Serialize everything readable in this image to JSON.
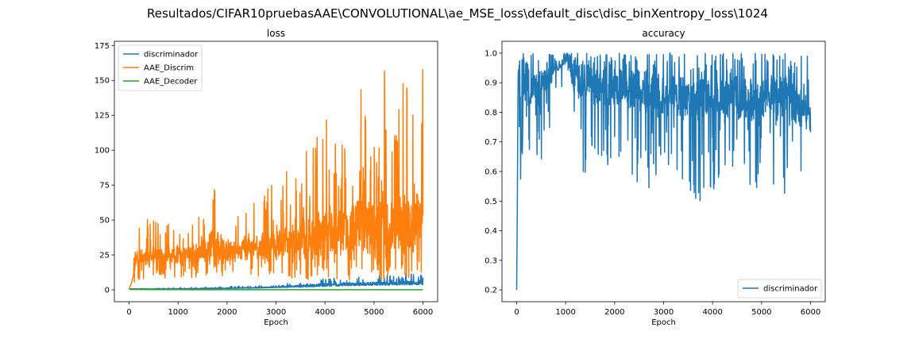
{
  "figure": {
    "suptitle": "Resultados/CIFAR10pruebasAAE\\CONVOLUTIONAL\\ae_MSE_loss\\default_disc\\disc_binXentropy_loss\\1024"
  },
  "chart_data": [
    {
      "type": "line",
      "title": "loss",
      "xlabel": "Epoch",
      "ylabel": "",
      "xlim": [
        -300,
        6300
      ],
      "ylim": [
        -8.5,
        178
      ],
      "xticks": [
        0,
        1000,
        2000,
        3000,
        4000,
        5000,
        6000
      ],
      "yticks": [
        0,
        25,
        50,
        75,
        100,
        125,
        150,
        175
      ],
      "legend_position": "upper-left",
      "series": [
        {
          "name": "discriminador",
          "color": "#1f77b4",
          "points": [
            [
              0,
              0.7
            ],
            [
              200,
              0.6
            ],
            [
              600,
              0.5
            ],
            [
              1000,
              0.5
            ],
            [
              1400,
              0.6
            ],
            [
              1800,
              0.8
            ],
            [
              2200,
              1.0
            ],
            [
              2600,
              1.2
            ],
            [
              3000,
              1.6
            ],
            [
              3500,
              2.0
            ],
            [
              4000,
              2.5
            ],
            [
              4500,
              3.0
            ],
            [
              5000,
              3.2
            ],
            [
              5500,
              3.5
            ],
            [
              6000,
              3.8
            ]
          ],
          "envelope_max": [
            [
              0,
              0.8
            ],
            [
              500,
              1.0
            ],
            [
              1000,
              1.5
            ],
            [
              1500,
              2.0
            ],
            [
              2000,
              2.5
            ],
            [
              3000,
              3.5
            ],
            [
              3500,
              6.0
            ],
            [
              4000,
              8.0
            ],
            [
              4500,
              9.0
            ],
            [
              5000,
              10.0
            ],
            [
              5500,
              11.0
            ],
            [
              6000,
              12.0
            ]
          ]
        },
        {
          "name": "AAE_Discrim",
          "color": "#ff7f0e",
          "points": [
            [
              0,
              0.5
            ],
            [
              50,
              5
            ],
            [
              100,
              12
            ],
            [
              150,
              20
            ],
            [
              500,
              22
            ],
            [
              1000,
              23
            ],
            [
              1500,
              24
            ],
            [
              2000,
              25
            ],
            [
              2500,
              26
            ],
            [
              3000,
              27
            ],
            [
              3500,
              28
            ],
            [
              4000,
              30
            ],
            [
              4500,
              31
            ],
            [
              5000,
              32
            ],
            [
              5500,
              33
            ],
            [
              6000,
              34
            ]
          ],
          "envelope_min": [
            [
              100,
              5
            ],
            [
              500,
              8
            ],
            [
              1000,
              8
            ],
            [
              1500,
              9
            ],
            [
              2000,
              10
            ],
            [
              3000,
              9
            ],
            [
              3500,
              7
            ],
            [
              4000,
              6
            ],
            [
              4500,
              7
            ],
            [
              5000,
              7
            ],
            [
              5500,
              8
            ],
            [
              6000,
              8
            ]
          ],
          "envelope_max": [
            [
              100,
              55
            ],
            [
              300,
              50
            ],
            [
              600,
              52
            ],
            [
              1000,
              48
            ],
            [
              1400,
              50
            ],
            [
              1700,
              86
            ],
            [
              2000,
              55
            ],
            [
              2500,
              65
            ],
            [
              3000,
              80
            ],
            [
              3500,
              95
            ],
            [
              3800,
              120
            ],
            [
              4000,
              125
            ],
            [
              4200,
              118
            ],
            [
              4500,
              130
            ],
            [
              4800,
              150
            ],
            [
              5000,
              120
            ],
            [
              5200,
              160
            ],
            [
              5400,
              125
            ],
            [
              5600,
              150
            ],
            [
              5800,
              140
            ],
            [
              6000,
              170
            ]
          ]
        },
        {
          "name": "AAE_Decoder",
          "color": "#2ca02c",
          "points": [
            [
              0,
              0.3
            ],
            [
              500,
              0.2
            ],
            [
              1000,
              0.15
            ],
            [
              2000,
              0.12
            ],
            [
              3000,
              0.1
            ],
            [
              4000,
              0.1
            ],
            [
              5000,
              0.1
            ],
            [
              6000,
              0.1
            ]
          ]
        }
      ]
    },
    {
      "type": "line",
      "title": "accuracy",
      "xlabel": "Epoch",
      "ylabel": "",
      "xlim": [
        -300,
        6300
      ],
      "ylim": [
        0.16,
        1.04
      ],
      "xticks": [
        0,
        1000,
        2000,
        3000,
        4000,
        5000,
        6000
      ],
      "yticks": [
        0.2,
        0.3,
        0.4,
        0.5,
        0.6,
        0.7,
        0.8,
        0.9,
        1.0
      ],
      "legend_position": "lower-right",
      "series": [
        {
          "name": "discriminador",
          "color": "#1f77b4",
          "points": [
            [
              0,
              0.2
            ],
            [
              15,
              0.52
            ],
            [
              30,
              1.0
            ],
            [
              60,
              1.0
            ],
            [
              100,
              0.5
            ],
            [
              150,
              1.0
            ],
            [
              300,
              0.9
            ],
            [
              600,
              0.95
            ],
            [
              900,
              0.97
            ],
            [
              1000,
              1.0
            ],
            [
              1500,
              0.95
            ],
            [
              2000,
              0.93
            ],
            [
              2500,
              0.92
            ],
            [
              3000,
              0.9
            ],
            [
              3500,
              0.89
            ],
            [
              4000,
              0.88
            ],
            [
              4500,
              0.88
            ],
            [
              5000,
              0.88
            ],
            [
              5500,
              0.88
            ],
            [
              6000,
              0.8
            ]
          ],
          "envelope_min": [
            [
              100,
              0.5
            ],
            [
              300,
              0.6
            ],
            [
              500,
              0.6
            ],
            [
              800,
              0.86
            ],
            [
              1000,
              0.9
            ],
            [
              1200,
              0.59
            ],
            [
              1500,
              0.6
            ],
            [
              2000,
              0.6
            ],
            [
              2500,
              0.56
            ],
            [
              2800,
              0.53
            ],
            [
              3000,
              0.55
            ],
            [
              3500,
              0.55
            ],
            [
              3700,
              0.49
            ],
            [
              4000,
              0.54
            ],
            [
              4500,
              0.52
            ],
            [
              4900,
              0.48
            ],
            [
              5200,
              0.55
            ],
            [
              5600,
              0.49
            ],
            [
              6000,
              0.6
            ]
          ],
          "envelope_max": [
            [
              30,
              1.0
            ],
            [
              6000,
              1.0
            ]
          ]
        }
      ]
    }
  ]
}
